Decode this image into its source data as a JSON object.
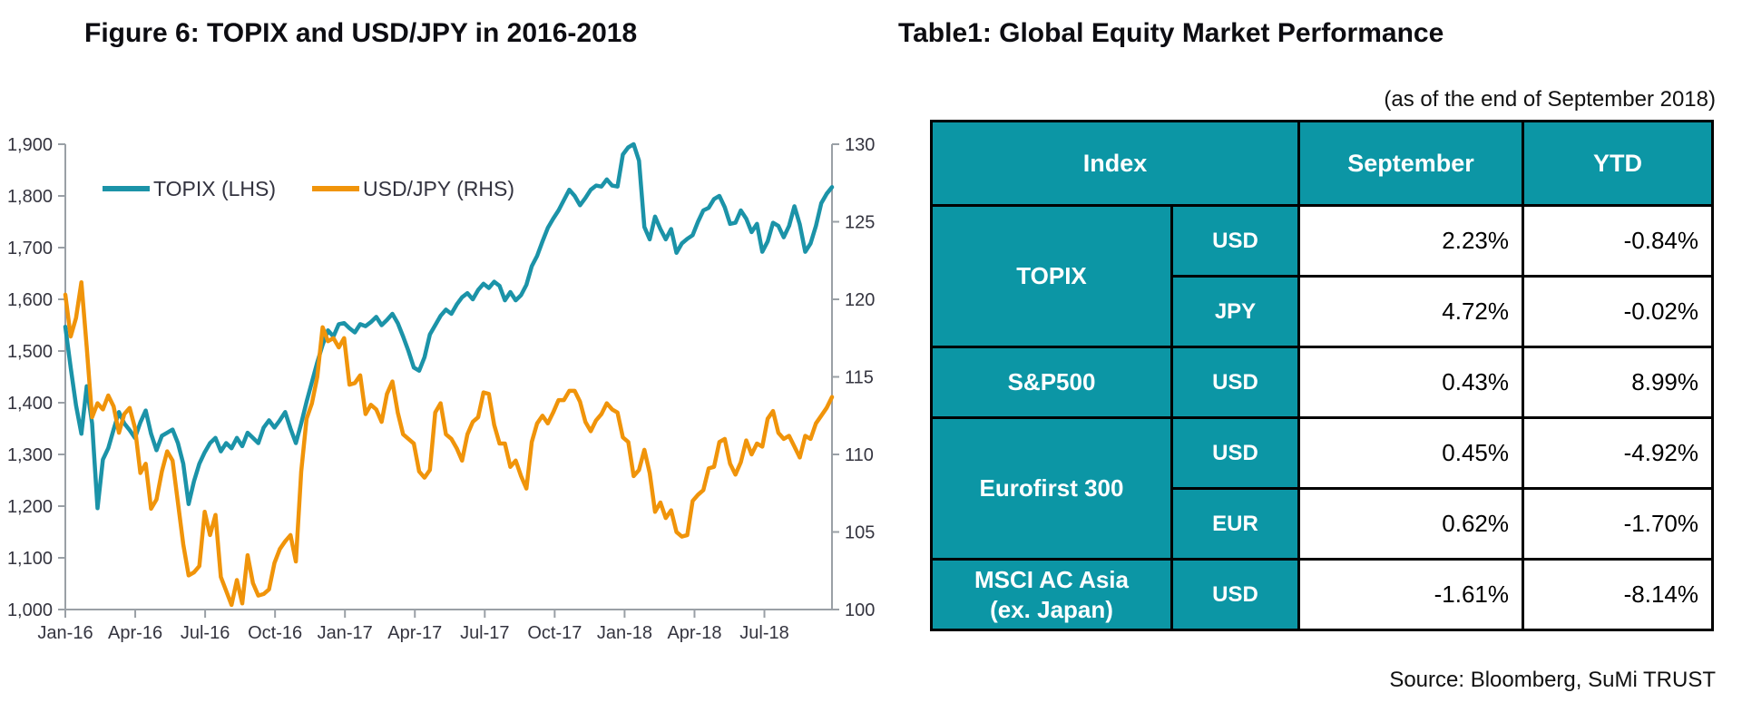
{
  "figure": {
    "title": "Figure 6: TOPIX and USD/JPY in 2016-2018"
  },
  "chart_data": {
    "type": "line",
    "title": "Figure 6: TOPIX and USD/JPY in 2016-2018",
    "grid": false,
    "legend_position": "top-inside",
    "x_tick_labels": [
      "Jan-16",
      "Apr-16",
      "Jul-16",
      "Oct-16",
      "Jan-17",
      "Apr-17",
      "Jul-17",
      "Oct-17",
      "Jan-18",
      "Apr-18",
      "Jul-18"
    ],
    "x_range_months": [
      0,
      32.9
    ],
    "x_tick_every_months": 3,
    "left_axis": {
      "min": 1000,
      "max": 1900,
      "step": 100,
      "tick_labels": [
        "1,000",
        "1,100",
        "1,200",
        "1,300",
        "1,400",
        "1,500",
        "1,600",
        "1,700",
        "1,800",
        "1,900"
      ]
    },
    "right_axis": {
      "min": 100,
      "max": 130,
      "step": 5,
      "tick_labels": [
        "100",
        "105",
        "110",
        "115",
        "120",
        "125",
        "130"
      ]
    },
    "axis_color": "#9aa0a6",
    "tick_text_color": "#34343f",
    "series": [
      {
        "name": "TOPIX (LHS)",
        "axis": "left",
        "color": "#1b93a8",
        "values": [
          1547,
          1468,
          1395,
          1340,
          1432,
          1360,
          1196,
          1290,
          1312,
          1348,
          1382,
          1360,
          1347,
          1332,
          1362,
          1385,
          1340,
          1308,
          1336,
          1342,
          1348,
          1322,
          1282,
          1204,
          1248,
          1282,
          1304,
          1322,
          1332,
          1306,
          1322,
          1312,
          1332,
          1316,
          1342,
          1332,
          1322,
          1352,
          1366,
          1352,
          1366,
          1382,
          1350,
          1322,
          1360,
          1402,
          1440,
          1478,
          1512,
          1540,
          1528,
          1552,
          1554,
          1544,
          1536,
          1552,
          1548,
          1556,
          1566,
          1550,
          1560,
          1572,
          1554,
          1528,
          1500,
          1468,
          1462,
          1488,
          1532,
          1550,
          1568,
          1580,
          1572,
          1590,
          1604,
          1612,
          1600,
          1618,
          1630,
          1622,
          1634,
          1626,
          1598,
          1614,
          1598,
          1608,
          1628,
          1664,
          1684,
          1712,
          1738,
          1756,
          1772,
          1792,
          1812,
          1800,
          1782,
          1796,
          1812,
          1820,
          1818,
          1832,
          1820,
          1818,
          1880,
          1894,
          1900,
          1868,
          1740,
          1716,
          1760,
          1736,
          1716,
          1736,
          1690,
          1708,
          1717,
          1724,
          1750,
          1772,
          1777,
          1794,
          1800,
          1778,
          1746,
          1748,
          1772,
          1756,
          1730,
          1746,
          1692,
          1712,
          1748,
          1742,
          1720,
          1742,
          1780,
          1745,
          1692,
          1708,
          1742,
          1786,
          1804,
          1817
        ]
      },
      {
        "name": "USD/JPY (RHS)",
        "axis": "right",
        "color": "#f0940a",
        "values": [
          120.3,
          117.6,
          118.8,
          121.1,
          116.9,
          112.4,
          113.3,
          112.9,
          113.8,
          113.1,
          111.4,
          112.6,
          113.0,
          111.7,
          108.8,
          109.4,
          106.5,
          107.1,
          108.9,
          110.2,
          109.6,
          106.9,
          104.2,
          102.2,
          102.4,
          102.8,
          106.3,
          104.8,
          106.1,
          102.1,
          101.2,
          100.3,
          101.9,
          100.4,
          103.5,
          101.7,
          100.9,
          101.0,
          101.3,
          103.0,
          103.9,
          104.4,
          104.8,
          103.1,
          108.9,
          112.3,
          113.3,
          115.0,
          118.2,
          117.3,
          117.5,
          116.9,
          117.5,
          114.5,
          114.6,
          115.1,
          112.6,
          113.2,
          112.9,
          112.1,
          113.9,
          114.7,
          112.7,
          111.3,
          111.0,
          110.7,
          108.9,
          108.5,
          109.0,
          112.7,
          113.3,
          111.3,
          111.0,
          110.4,
          109.6,
          111.3,
          112.1,
          112.4,
          114.0,
          113.9,
          111.9,
          110.7,
          110.7,
          109.2,
          109.6,
          108.6,
          107.8,
          110.8,
          112.0,
          112.5,
          112.0,
          112.7,
          113.5,
          113.5,
          114.1,
          114.1,
          113.4,
          112.1,
          111.5,
          112.2,
          112.6,
          113.3,
          112.9,
          112.7,
          111.1,
          110.8,
          108.6,
          109.0,
          110.3,
          108.8,
          106.3,
          106.9,
          105.9,
          106.4,
          105.0,
          104.7,
          104.8,
          107.0,
          107.4,
          107.7,
          109.1,
          109.2,
          110.8,
          111.0,
          109.4,
          108.7,
          109.5,
          110.9,
          110.0,
          110.7,
          110.5,
          112.3,
          112.8,
          111.4,
          111.0,
          111.2,
          110.5,
          109.8,
          111.2,
          111.0,
          112.0,
          112.5,
          113.0,
          113.7
        ]
      }
    ]
  },
  "table": {
    "title": "Table1: Global Equity Market Performance",
    "as_of": "(as of the end of September 2018)",
    "header": {
      "index": "Index",
      "september": "September",
      "ytd": "YTD"
    },
    "groups": [
      {
        "name": "TOPIX",
        "entries": [
          {
            "ccy": "USD",
            "september": "2.23%",
            "ytd": "-0.84%"
          },
          {
            "ccy": "JPY",
            "september": "4.72%",
            "ytd": "-0.02%"
          }
        ]
      },
      {
        "name": "S&P500",
        "entries": [
          {
            "ccy": "USD",
            "september": "0.43%",
            "ytd": "8.99%"
          }
        ]
      },
      {
        "name": "Eurofirst 300",
        "entries": [
          {
            "ccy": "USD",
            "september": "0.45%",
            "ytd": "-4.92%"
          },
          {
            "ccy": "EUR",
            "september": "0.62%",
            "ytd": "-1.70%"
          }
        ]
      },
      {
        "name": "MSCI AC Asia",
        "name2": "(ex. Japan)",
        "entries": [
          {
            "ccy": "USD",
            "september": "-1.61%",
            "ytd": "-8.14%"
          }
        ]
      }
    ],
    "source": "Source: Bloomberg, SuMi TRUST",
    "colors": {
      "header_bg": "#0c96a5",
      "border": "#000000"
    }
  }
}
